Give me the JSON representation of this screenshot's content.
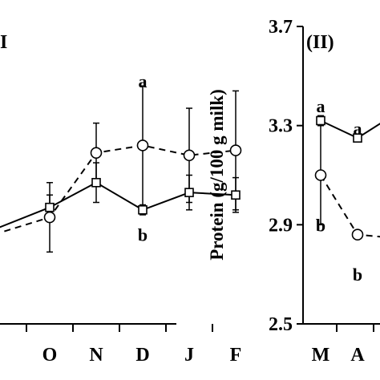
{
  "chart_data": [
    {
      "panel": "left",
      "type": "line",
      "panel_label": "I",
      "ylim": [
        2.5,
        3.7
      ],
      "categories": [
        "O",
        "N",
        "D",
        "J",
        "F"
      ],
      "series": [
        {
          "marker": "square",
          "line": "solid",
          "values": [
            2.97,
            3.07,
            2.96,
            3.03,
            3.02
          ],
          "errors": [
            0.05,
            0.08,
            0.02,
            0.07,
            0.07
          ]
        },
        {
          "marker": "circle",
          "line": "dashed",
          "values": [
            2.93,
            3.19,
            3.22,
            3.18,
            3.2
          ],
          "errors": [
            0.14,
            0.12,
            0.24,
            0.19,
            0.24
          ]
        }
      ],
      "annotations": [
        {
          "text": "a",
          "category": "D",
          "y": 3.48
        },
        {
          "text": "b",
          "category": "D",
          "y": 2.86
        }
      ]
    },
    {
      "panel": "right",
      "type": "line",
      "panel_label": "(II)",
      "ylabel": "Protein (g/100 g milk)",
      "yticks": [
        "3.7",
        "3.3",
        "2.9",
        "2.5"
      ],
      "ylim": [
        2.5,
        3.7
      ],
      "categories": [
        "M",
        "A"
      ],
      "series": [
        {
          "marker": "square",
          "line": "solid",
          "values": [
            3.32,
            3.25
          ],
          "errors": [
            0.02,
            0.01
          ]
        },
        {
          "marker": "circle",
          "line": "dashed",
          "values": [
            3.1,
            2.86
          ],
          "errors": [
            0.2,
            0.0
          ]
        }
      ],
      "annotations": [
        {
          "text": "a",
          "category": "M",
          "y": 3.38
        },
        {
          "text": "a",
          "category": "A",
          "y": 3.29
        },
        {
          "text": "b",
          "category": "M",
          "y": 2.9
        },
        {
          "text": "b",
          "category": "A",
          "y": 2.7
        }
      ]
    }
  ]
}
